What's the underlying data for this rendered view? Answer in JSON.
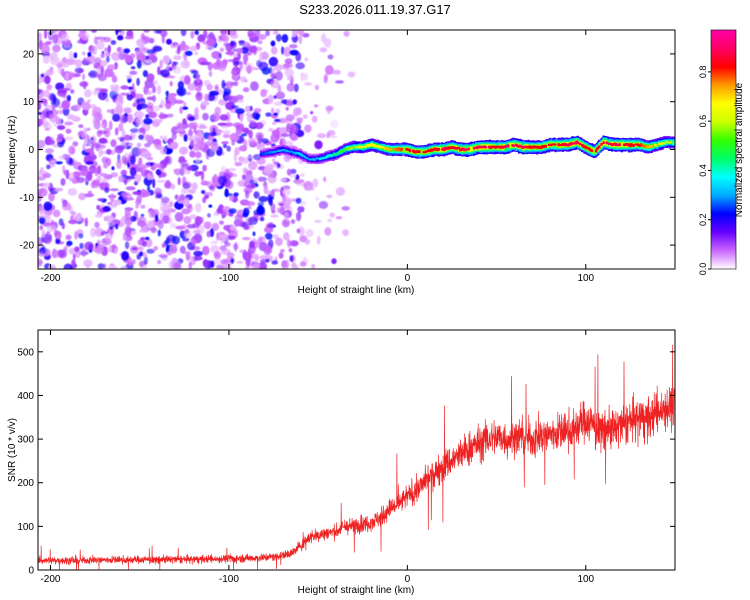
{
  "figure": {
    "title": "S233.2026.011.19.37.G17"
  },
  "chart_data": [
    {
      "type": "heatmap",
      "xlabel": "Height of straight line (km)",
      "ylabel": "Frequency (Hz)",
      "xlim": [
        -207,
        150
      ],
      "ylim": [
        -25,
        25
      ],
      "x_ticks": [
        -200,
        -100,
        0,
        100
      ],
      "x_tick_labels": [
        "-200",
        "-100",
        "0",
        "100"
      ],
      "y_ticks": [
        -20,
        -10,
        0,
        10,
        20
      ],
      "y_tick_labels": [
        "-20",
        "-10",
        "0",
        "10",
        "20"
      ],
      "colorbar": {
        "label": "Normalized spectral amplitude",
        "range": [
          0,
          0.97
        ],
        "ticks": [
          0,
          0.2,
          0.4,
          0.6,
          0.8
        ],
        "tick_labels": [
          "0.0",
          "0.2",
          "0.4",
          "0.6",
          "0.8"
        ],
        "colors": [
          "#ffffff",
          "#cc66ff",
          "#6600ff",
          "#0000ff",
          "#00aaff",
          "#00ffff",
          "#00ff66",
          "#33ff00",
          "#ccff00",
          "#ffff00",
          "#ff9900",
          "#ff0000",
          "#ff0066",
          "#ff00aa"
        ]
      },
      "noise_region_x": [
        -207,
        -60
      ],
      "signal_trace": {
        "x": [
          -82,
          -75,
          -70,
          -65,
          -60,
          -55,
          -50,
          -45,
          -40,
          -35,
          -30,
          -25,
          -20,
          -15,
          -10,
          -5,
          0,
          5,
          10,
          15,
          20,
          25,
          30,
          35,
          40,
          45,
          50,
          55,
          60,
          65,
          70,
          75,
          80,
          85,
          90,
          95,
          100,
          105,
          110,
          115,
          120,
          125,
          130,
          135,
          140,
          145,
          150
        ],
        "frequency": [
          -1,
          -0.5,
          0,
          -0.5,
          -1,
          -2,
          -2,
          -1.5,
          -1,
          0,
          0.5,
          0.5,
          1,
          0.5,
          0,
          0,
          0,
          -0.5,
          -0.5,
          0,
          0,
          0.5,
          0,
          0,
          0.5,
          0.5,
          0.5,
          0.5,
          1,
          0.5,
          0.5,
          0.5,
          1,
          1,
          1,
          1.5,
          0.5,
          -0.5,
          1.5,
          1,
          1,
          1,
          1,
          0.5,
          1,
          1.5,
          1.5
        ],
        "amplitude": [
          0.25,
          0.3,
          0.32,
          0.3,
          0.35,
          0.3,
          0.35,
          0.4,
          0.45,
          0.55,
          0.6,
          0.65,
          0.7,
          0.7,
          0.75,
          0.8,
          0.85,
          0.85,
          0.85,
          0.85,
          0.9,
          0.85,
          0.9,
          0.9,
          0.9,
          0.9,
          0.85,
          0.9,
          0.9,
          0.9,
          0.85,
          0.85,
          0.85,
          0.85,
          0.9,
          0.9,
          0.85,
          0.85,
          0.9,
          0.9,
          0.9,
          0.85,
          0.85,
          0.75,
          0.7,
          0.6,
          0.6
        ]
      }
    },
    {
      "type": "line",
      "xlabel": "Height of straight line (km)",
      "ylabel": "SNR (10 * v/v)",
      "xlim": [
        -207,
        150
      ],
      "ylim": [
        0,
        550
      ],
      "x_ticks": [
        -200,
        -100,
        0,
        100
      ],
      "x_tick_labels": [
        "-200",
        "-100",
        "0",
        "100"
      ],
      "y_ticks": [
        0,
        100,
        200,
        300,
        400,
        500
      ],
      "y_tick_labels": [
        "0",
        "100",
        "200",
        "300",
        "400",
        "500"
      ],
      "series": [
        {
          "color": "#ee2222",
          "x": [
            -207,
            -190,
            -170,
            -150,
            -130,
            -110,
            -90,
            -75,
            -65,
            -60,
            -55,
            -50,
            -45,
            -40,
            -35,
            -30,
            -25,
            -20,
            -15,
            -10,
            -5,
            0,
            5,
            10,
            15,
            20,
            25,
            30,
            35,
            40,
            45,
            50,
            55,
            60,
            65,
            70,
            75,
            80,
            85,
            90,
            95,
            100,
            105,
            110,
            115,
            120,
            125,
            130,
            135,
            140,
            145,
            150
          ],
          "y": [
            22,
            22,
            23,
            24,
            24,
            25,
            27,
            30,
            38,
            55,
            75,
            80,
            85,
            88,
            100,
            100,
            105,
            110,
            120,
            140,
            150,
            170,
            180,
            205,
            220,
            240,
            250,
            265,
            280,
            290,
            300,
            305,
            300,
            305,
            305,
            300,
            305,
            310,
            315,
            320,
            330,
            345,
            330,
            325,
            320,
            330,
            340,
            350,
            345,
            360,
            375,
            370
          ]
        }
      ]
    }
  ]
}
